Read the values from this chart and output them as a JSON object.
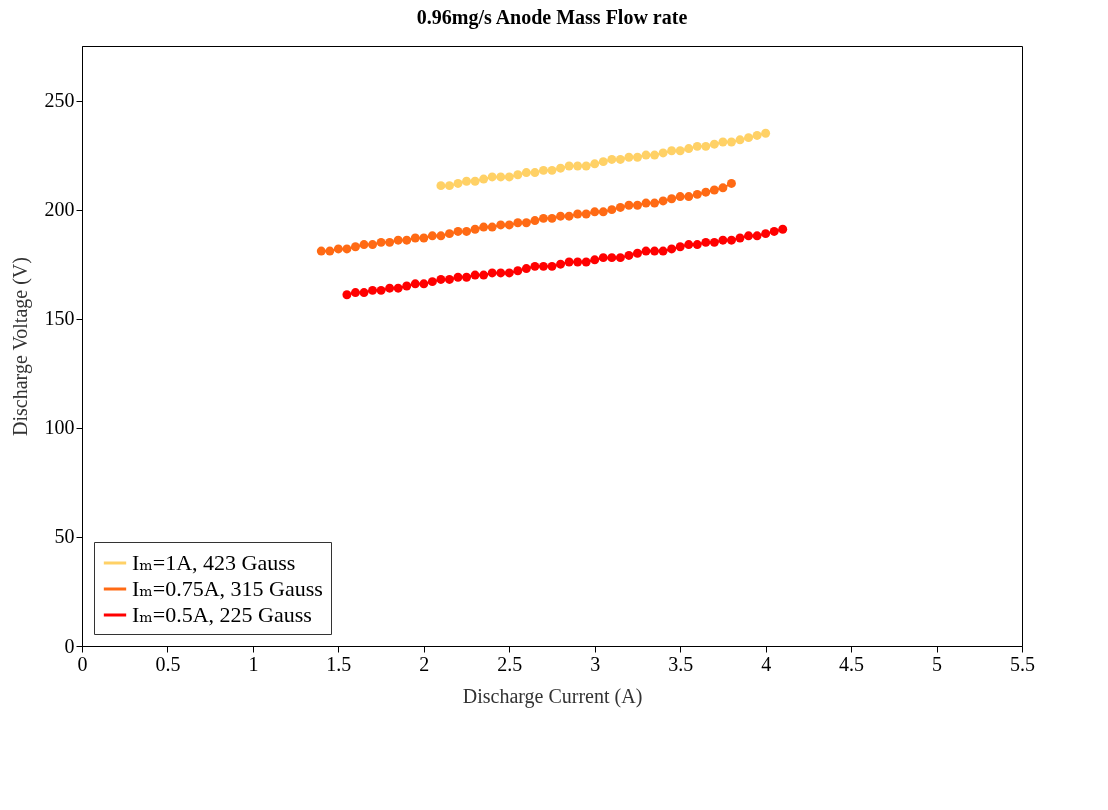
{
  "chart_data": {
    "type": "line",
    "title": "0.96mg/s Anode Mass Flow rate",
    "xlabel": "Discharge Current (A)",
    "ylabel": "Discharge Voltage (V)",
    "xlim": [
      0,
      5.5
    ],
    "xticks": [
      0,
      0.5,
      1,
      1.5,
      2,
      2.5,
      3,
      3.5,
      4,
      4.5,
      5,
      5.5
    ],
    "ylim": [
      0,
      275
    ],
    "yticks": [
      0,
      50,
      100,
      150,
      200,
      250
    ],
    "grid": false,
    "legend": "bottom left",
    "marker": "circle",
    "line_style": "solid",
    "series": [
      {
        "name": "Iₘ=1A, 423 Gauss",
        "color": "#ffd166",
        "x": [
          2.1,
          2.15,
          2.2,
          2.25,
          2.3,
          2.35,
          2.4,
          2.45,
          2.5,
          2.55,
          2.6,
          2.65,
          2.7,
          2.75,
          2.8,
          2.85,
          2.9,
          2.95,
          3.0,
          3.05,
          3.1,
          3.15,
          3.2,
          3.25,
          3.3,
          3.35,
          3.4,
          3.45,
          3.5,
          3.55,
          3.6,
          3.65,
          3.7,
          3.75,
          3.8,
          3.85,
          3.9,
          3.95,
          4.0
        ],
        "values": [
          211,
          211,
          212,
          213,
          213,
          214,
          215,
          215,
          215,
          216,
          217,
          217,
          218,
          218,
          219,
          220,
          220,
          220,
          221,
          222,
          223,
          223,
          224,
          224,
          225,
          225,
          226,
          227,
          227,
          228,
          229,
          229,
          230,
          231,
          231,
          232,
          233,
          234,
          235
        ]
      },
      {
        "name": "Iₘ=0.75A, 315 Gauss",
        "color": "#ff6a14",
        "x": [
          1.4,
          1.45,
          1.5,
          1.55,
          1.6,
          1.65,
          1.7,
          1.75,
          1.8,
          1.85,
          1.9,
          1.95,
          2.0,
          2.05,
          2.1,
          2.15,
          2.2,
          2.25,
          2.3,
          2.35,
          2.4,
          2.45,
          2.5,
          2.55,
          2.6,
          2.65,
          2.7,
          2.75,
          2.8,
          2.85,
          2.9,
          2.95,
          3.0,
          3.05,
          3.1,
          3.15,
          3.2,
          3.25,
          3.3,
          3.35,
          3.4,
          3.45,
          3.5,
          3.55,
          3.6,
          3.65,
          3.7,
          3.75,
          3.8
        ],
        "values": [
          181,
          181,
          182,
          182,
          183,
          184,
          184,
          185,
          185,
          186,
          186,
          187,
          187,
          188,
          188,
          189,
          190,
          190,
          191,
          192,
          192,
          193,
          193,
          194,
          194,
          195,
          196,
          196,
          197,
          197,
          198,
          198,
          199,
          199,
          200,
          201,
          202,
          202,
          203,
          203,
          204,
          205,
          206,
          206,
          207,
          208,
          209,
          210,
          212
        ]
      },
      {
        "name": "Iₘ=0.5A, 225 Gauss",
        "color": "#ff0000",
        "x": [
          1.55,
          1.6,
          1.65,
          1.7,
          1.75,
          1.8,
          1.85,
          1.9,
          1.95,
          2.0,
          2.05,
          2.1,
          2.15,
          2.2,
          2.25,
          2.3,
          2.35,
          2.4,
          2.45,
          2.5,
          2.55,
          2.6,
          2.65,
          2.7,
          2.75,
          2.8,
          2.85,
          2.9,
          2.95,
          3.0,
          3.05,
          3.1,
          3.15,
          3.2,
          3.25,
          3.3,
          3.35,
          3.4,
          3.45,
          3.5,
          3.55,
          3.6,
          3.65,
          3.7,
          3.75,
          3.8,
          3.85,
          3.9,
          3.95,
          4.0,
          4.05,
          4.1
        ],
        "values": [
          161,
          162,
          162,
          163,
          163,
          164,
          164,
          165,
          166,
          166,
          167,
          168,
          168,
          169,
          169,
          170,
          170,
          171,
          171,
          171,
          172,
          173,
          174,
          174,
          174,
          175,
          176,
          176,
          176,
          177,
          178,
          178,
          178,
          179,
          180,
          181,
          181,
          181,
          182,
          183,
          184,
          184,
          185,
          185,
          186,
          186,
          187,
          188,
          188,
          189,
          190,
          191
        ]
      }
    ]
  }
}
